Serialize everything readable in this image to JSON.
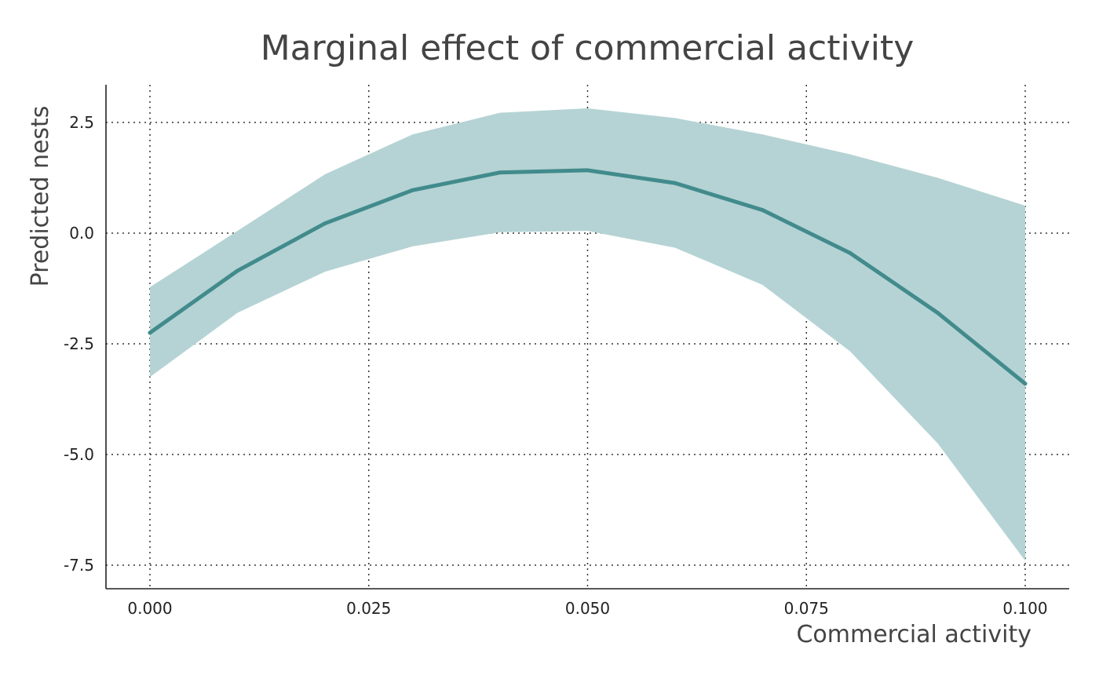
{
  "chart_data": {
    "type": "line",
    "title": "Marginal effect of commercial activity",
    "xlabel": "Commercial activity",
    "ylabel": "Predicted nests",
    "xlim": [
      -0.005,
      0.105
    ],
    "ylim": [
      -8.0,
      3.3
    ],
    "grid": true,
    "legend": "none",
    "x": [
      0.0,
      0.01,
      0.02,
      0.03,
      0.04,
      0.05,
      0.06,
      0.07,
      0.08,
      0.09,
      0.1
    ],
    "x_ticks": [
      {
        "value": 0.0,
        "label": "0.000"
      },
      {
        "value": 0.025,
        "label": "0.025"
      },
      {
        "value": 0.05,
        "label": "0.050"
      },
      {
        "value": 0.075,
        "label": "0.075"
      },
      {
        "value": 0.1,
        "label": "0.100"
      }
    ],
    "y_ticks": [
      {
        "value": 2.5,
        "label": "2.5"
      },
      {
        "value": 0.0,
        "label": "0.0"
      },
      {
        "value": -2.5,
        "label": "-2.5"
      },
      {
        "value": -5.0,
        "label": "-5.0"
      },
      {
        "value": -7.5,
        "label": "-7.5"
      }
    ],
    "series": [
      {
        "values": [
          -2.25,
          -0.85,
          0.22,
          0.97,
          1.37,
          1.42,
          1.13,
          0.52,
          -0.45,
          -1.8,
          -3.4
        ],
        "ci_lower": [
          -3.25,
          -1.8,
          -0.87,
          -0.3,
          0.02,
          0.05,
          -0.33,
          -1.17,
          -2.67,
          -4.75,
          -7.4
        ],
        "ci_upper": [
          -1.22,
          0.05,
          1.33,
          2.23,
          2.72,
          2.82,
          2.6,
          2.23,
          1.78,
          1.25,
          0.62
        ],
        "color": "#428b8d",
        "band_color": "#b5d3d4"
      }
    ]
  }
}
